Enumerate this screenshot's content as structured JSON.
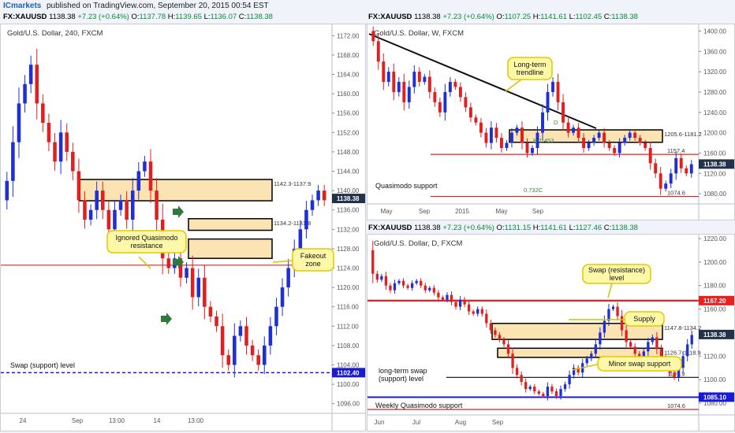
{
  "header": {
    "brand": "ICmarkets",
    "published": "published on TradingView.com, September 20, 2015 00:54 EST"
  },
  "left_bar": {
    "symbol": "FX:XAUUSD",
    "last": "1138.38",
    "change": "+7.23 (+0.64%)",
    "open_label": "O:",
    "open": "1137.78",
    "high_label": "H:",
    "high": "1139.65",
    "low_label": "L:",
    "low": "1136.07",
    "close_label": "C:",
    "close": "1138.38"
  },
  "weekly_bar": {
    "symbol": "FX:XAUUSD",
    "last": "1138.38",
    "change": "+7.23 (+0.64%)",
    "open_label": "O:",
    "open": "1107.25",
    "high_label": "H:",
    "high": "1141.61",
    "low_label": "L:",
    "low": "1102.45",
    "close_label": "C:",
    "close": "1138.38"
  },
  "daily_bar": {
    "symbol": "FX:XAUUSD",
    "last": "1138.38",
    "change": "+7.23 (+0.64%)",
    "open_label": "O:",
    "open": "1131.15",
    "high_label": "H:",
    "high": "1141.61",
    "low_label": "L:",
    "low": "1127.46",
    "close_label": "C:",
    "close": "1138.38"
  },
  "colors": {
    "up": "#1f2fd6",
    "down": "#e02020",
    "zone_fill": "#fbe3b4",
    "price_tag": "#22324a",
    "red_level": "#e82020",
    "blue_level": "#1a1ad6",
    "callout": "#fff8a8",
    "arrow": "#2f7a3a"
  },
  "chart_data": [
    {
      "type": "candlestick",
      "title": "Gold/U.S. Dollar, 240, FXCM",
      "ylim": [
        1094,
        1174
      ],
      "y_ticks": [
        "1172.00",
        "1168.00",
        "1164.00",
        "1160.00",
        "1156.00",
        "1152.00",
        "1148.00",
        "1144.00",
        "1140.00",
        "1136.00",
        "1132.00",
        "1128.00",
        "1124.00",
        "1120.00",
        "1116.00",
        "1112.00",
        "1108.00",
        "1104.00",
        "1100.00",
        "1096.00"
      ],
      "x_ticks": [
        "24",
        "Sep",
        "13:00",
        "14",
        "13:00"
      ],
      "close": [
        1142,
        1150,
        1158,
        1162,
        1166,
        1158,
        1154,
        1150,
        1146,
        1152,
        1148,
        1144,
        1138,
        1134,
        1136,
        1140,
        1136,
        1132,
        1136,
        1138,
        1134,
        1140,
        1144,
        1146,
        1140,
        1134,
        1126,
        1124,
        1126,
        1122,
        1124,
        1118,
        1122,
        1116,
        1114,
        1112,
        1106,
        1104,
        1110,
        1112,
        1108,
        1106,
        1104,
        1108,
        1112,
        1116,
        1120,
        1124,
        1128,
        1132,
        1136,
        1138,
        1140,
        1138
      ],
      "zones": [
        {
          "top": 1142.3,
          "bottom": 1137.9,
          "label": "1142.3-1137.9"
        },
        {
          "top": 1134.2,
          "bottom": 1131.8,
          "label": "1134.2-1131.8"
        },
        {
          "top": 1130.0,
          "bottom": 1126.0,
          "label": ""
        }
      ],
      "levels": [
        {
          "value": 1124.6,
          "label": "1124.6",
          "style": "red"
        },
        {
          "value": 1102.4,
          "label": "1102.40",
          "style": "blue-dashed"
        }
      ],
      "last_price": "1138.38",
      "annotations": [
        "Ignored Quasimodo resistance",
        "Fakeout zone",
        "Swap (support) level"
      ]
    },
    {
      "type": "candlestick",
      "title": "Gold/U.S. Dollar, W, FXCM",
      "ylim": [
        1060,
        1410
      ],
      "y_ticks": [
        "1400.00",
        "1360.00",
        "1320.00",
        "1280.00",
        "1240.00",
        "1200.00",
        "1160.00",
        "1120.00",
        "1080.00"
      ],
      "x_ticks": [
        "May",
        "Sep",
        "2015",
        "May",
        "Sep"
      ],
      "close": [
        1380,
        1340,
        1300,
        1320,
        1280,
        1300,
        1260,
        1290,
        1320,
        1300,
        1310,
        1280,
        1260,
        1240,
        1280,
        1300,
        1290,
        1270,
        1250,
        1230,
        1220,
        1200,
        1180,
        1210,
        1190,
        1170,
        1180,
        1200,
        1210,
        1180,
        1160,
        1170,
        1200,
        1240,
        1280,
        1300,
        1260,
        1220,
        1200,
        1210,
        1190,
        1170,
        1180,
        1190,
        1200,
        1180,
        1170,
        1160,
        1180,
        1190,
        1200,
        1190,
        1180,
        1170,
        1140,
        1120,
        1090,
        1100,
        1120,
        1150,
        1130,
        1120,
        1138
      ],
      "zones": [
        {
          "top": 1205.6,
          "bottom": 1181.2,
          "label": "1205.6-1181.2"
        }
      ],
      "levels": [
        {
          "value": 1157.4,
          "label": "1157.4",
          "style": "red"
        },
        {
          "value": 1074.6,
          "label": "1074.6",
          "style": "red"
        }
      ],
      "last_price": "1138.38",
      "pattern_labels": [
        "D",
        "B-1.453",
        "0.732C"
      ],
      "annotations": [
        "Long-term trendline",
        "Quasimodo support"
      ]
    },
    {
      "type": "candlestick",
      "title": "Gold/U.S. Dollar, D, FXCM",
      "ylim": [
        1070,
        1222
      ],
      "y_ticks": [
        "1220.00",
        "1200.00",
        "1180.00",
        "1160.00",
        "1140.00",
        "1120.00",
        "1100.00",
        "1080.00"
      ],
      "x_ticks": [
        "Jun",
        "Jul",
        "Aug",
        "Sep"
      ],
      "close": [
        1190,
        1185,
        1188,
        1180,
        1176,
        1182,
        1184,
        1180,
        1178,
        1182,
        1184,
        1180,
        1176,
        1178,
        1174,
        1170,
        1168,
        1172,
        1166,
        1162,
        1168,
        1164,
        1158,
        1156,
        1160,
        1156,
        1148,
        1142,
        1138,
        1134,
        1130,
        1122,
        1110,
        1104,
        1098,
        1092,
        1094,
        1090,
        1088,
        1086,
        1094,
        1090,
        1086,
        1092,
        1096,
        1104,
        1110,
        1106,
        1114,
        1118,
        1122,
        1130,
        1140,
        1150,
        1160,
        1162,
        1154,
        1142,
        1132,
        1128,
        1122,
        1118,
        1124,
        1132,
        1136,
        1126,
        1118,
        1112,
        1106,
        1102,
        1110,
        1120,
        1130,
        1138
      ],
      "zones": [
        {
          "top": 1147.8,
          "bottom": 1134.2,
          "label": "1147.8-1134.2"
        },
        {
          "top": 1126.7,
          "bottom": 1118.9,
          "label": "1126.7-1118.9"
        }
      ],
      "levels": [
        {
          "value": 1167.2,
          "label": "1167.20",
          "style": "red"
        },
        {
          "value": 1101.9,
          "label": "1101.9",
          "style": "black"
        },
        {
          "value": 1085.1,
          "label": "1085.10",
          "style": "blue"
        },
        {
          "value": 1074.6,
          "label": "1074.6",
          "style": "red"
        }
      ],
      "last_price": "1138.38",
      "annotations": [
        "Swap (resistance) level",
        "Supply",
        "Minor swap support",
        "long-term swap (support) level",
        "Weekly Quasimodo support"
      ]
    }
  ]
}
